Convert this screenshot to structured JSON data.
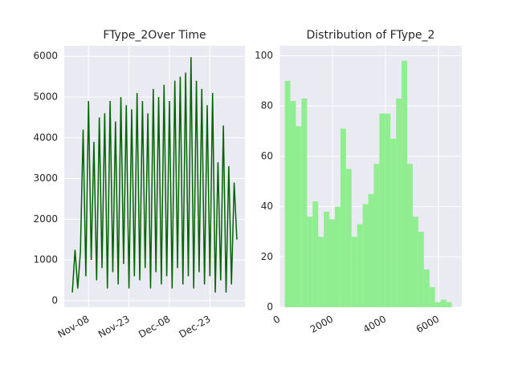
{
  "chart_data": [
    {
      "type": "line",
      "title": "FType_2Over Time",
      "color": "#006400",
      "grid": true,
      "x": [
        "Nov-02",
        "Nov-03",
        "Nov-04",
        "Nov-05",
        "Nov-06",
        "Nov-07",
        "Nov-08",
        "Nov-09",
        "Nov-10",
        "Nov-11",
        "Nov-12",
        "Nov-13",
        "Nov-14",
        "Nov-15",
        "Nov-16",
        "Nov-17",
        "Nov-18",
        "Nov-19",
        "Nov-20",
        "Nov-21",
        "Nov-22",
        "Nov-23",
        "Nov-24",
        "Nov-25",
        "Nov-26",
        "Nov-27",
        "Nov-28",
        "Nov-29",
        "Nov-30",
        "Dec-01",
        "Dec-02",
        "Dec-03",
        "Dec-04",
        "Dec-05",
        "Dec-06",
        "Dec-07",
        "Dec-08",
        "Dec-09",
        "Dec-10",
        "Dec-11",
        "Dec-12",
        "Dec-13",
        "Dec-14",
        "Dec-15",
        "Dec-16",
        "Dec-17",
        "Dec-18",
        "Dec-19",
        "Dec-20",
        "Dec-21",
        "Dec-22",
        "Dec-23",
        "Dec-24",
        "Dec-25",
        "Dec-26",
        "Dec-27",
        "Dec-28",
        "Dec-29",
        "Dec-30",
        "Dec-31",
        "Jan-01",
        "Jan-02"
      ],
      "values": [
        200,
        1250,
        300,
        1200,
        4200,
        600,
        4900,
        1000,
        3900,
        500,
        4500,
        800,
        4600,
        300,
        4900,
        700,
        4400,
        400,
        5000,
        900,
        4800,
        300,
        4700,
        600,
        5100,
        500,
        4900,
        800,
        4600,
        300,
        5200,
        700,
        5000,
        400,
        5300,
        600,
        4900,
        300,
        5400,
        800,
        5500,
        400,
        5600,
        600,
        5980,
        300,
        5400,
        700,
        5200,
        400,
        4800,
        600,
        5100,
        200,
        3400,
        500,
        4300,
        200,
        3300,
        400,
        2900,
        1500
      ],
      "xlim": [
        "Oct-30",
        "Jan-05"
      ],
      "xticks": [
        "Nov-08",
        "Nov-23",
        "Dec-08",
        "Dec-23"
      ],
      "ylim": [
        -160,
        6260
      ],
      "yticks": [
        0,
        1000,
        2000,
        3000,
        4000,
        5000,
        6000
      ]
    },
    {
      "type": "histogram",
      "title": "Distribution of FType_2",
      "color": "#90ee90",
      "grid": true,
      "bins": [
        200,
        410,
        620,
        830,
        1040,
        1250,
        1460,
        1670,
        1880,
        2090,
        2300,
        2510,
        2720,
        2930,
        3140,
        3350,
        3560,
        3770,
        3980,
        4190,
        4400,
        4610,
        4820,
        5030,
        5240,
        5450,
        5660,
        5870,
        6080,
        6290,
        6500
      ],
      "values": [
        90,
        82,
        72,
        83,
        36,
        42,
        28,
        38,
        35,
        40,
        71,
        55,
        28,
        33,
        41,
        45,
        57,
        77,
        77,
        67,
        83,
        98,
        57,
        36,
        30,
        15,
        8,
        2,
        3,
        2
      ],
      "xlim": [
        0,
        6880
      ],
      "xticks": [
        0,
        2000,
        4000,
        6000
      ],
      "ylim": [
        0,
        104
      ],
      "yticks": [
        0,
        20,
        40,
        60,
        80,
        100
      ]
    }
  ]
}
